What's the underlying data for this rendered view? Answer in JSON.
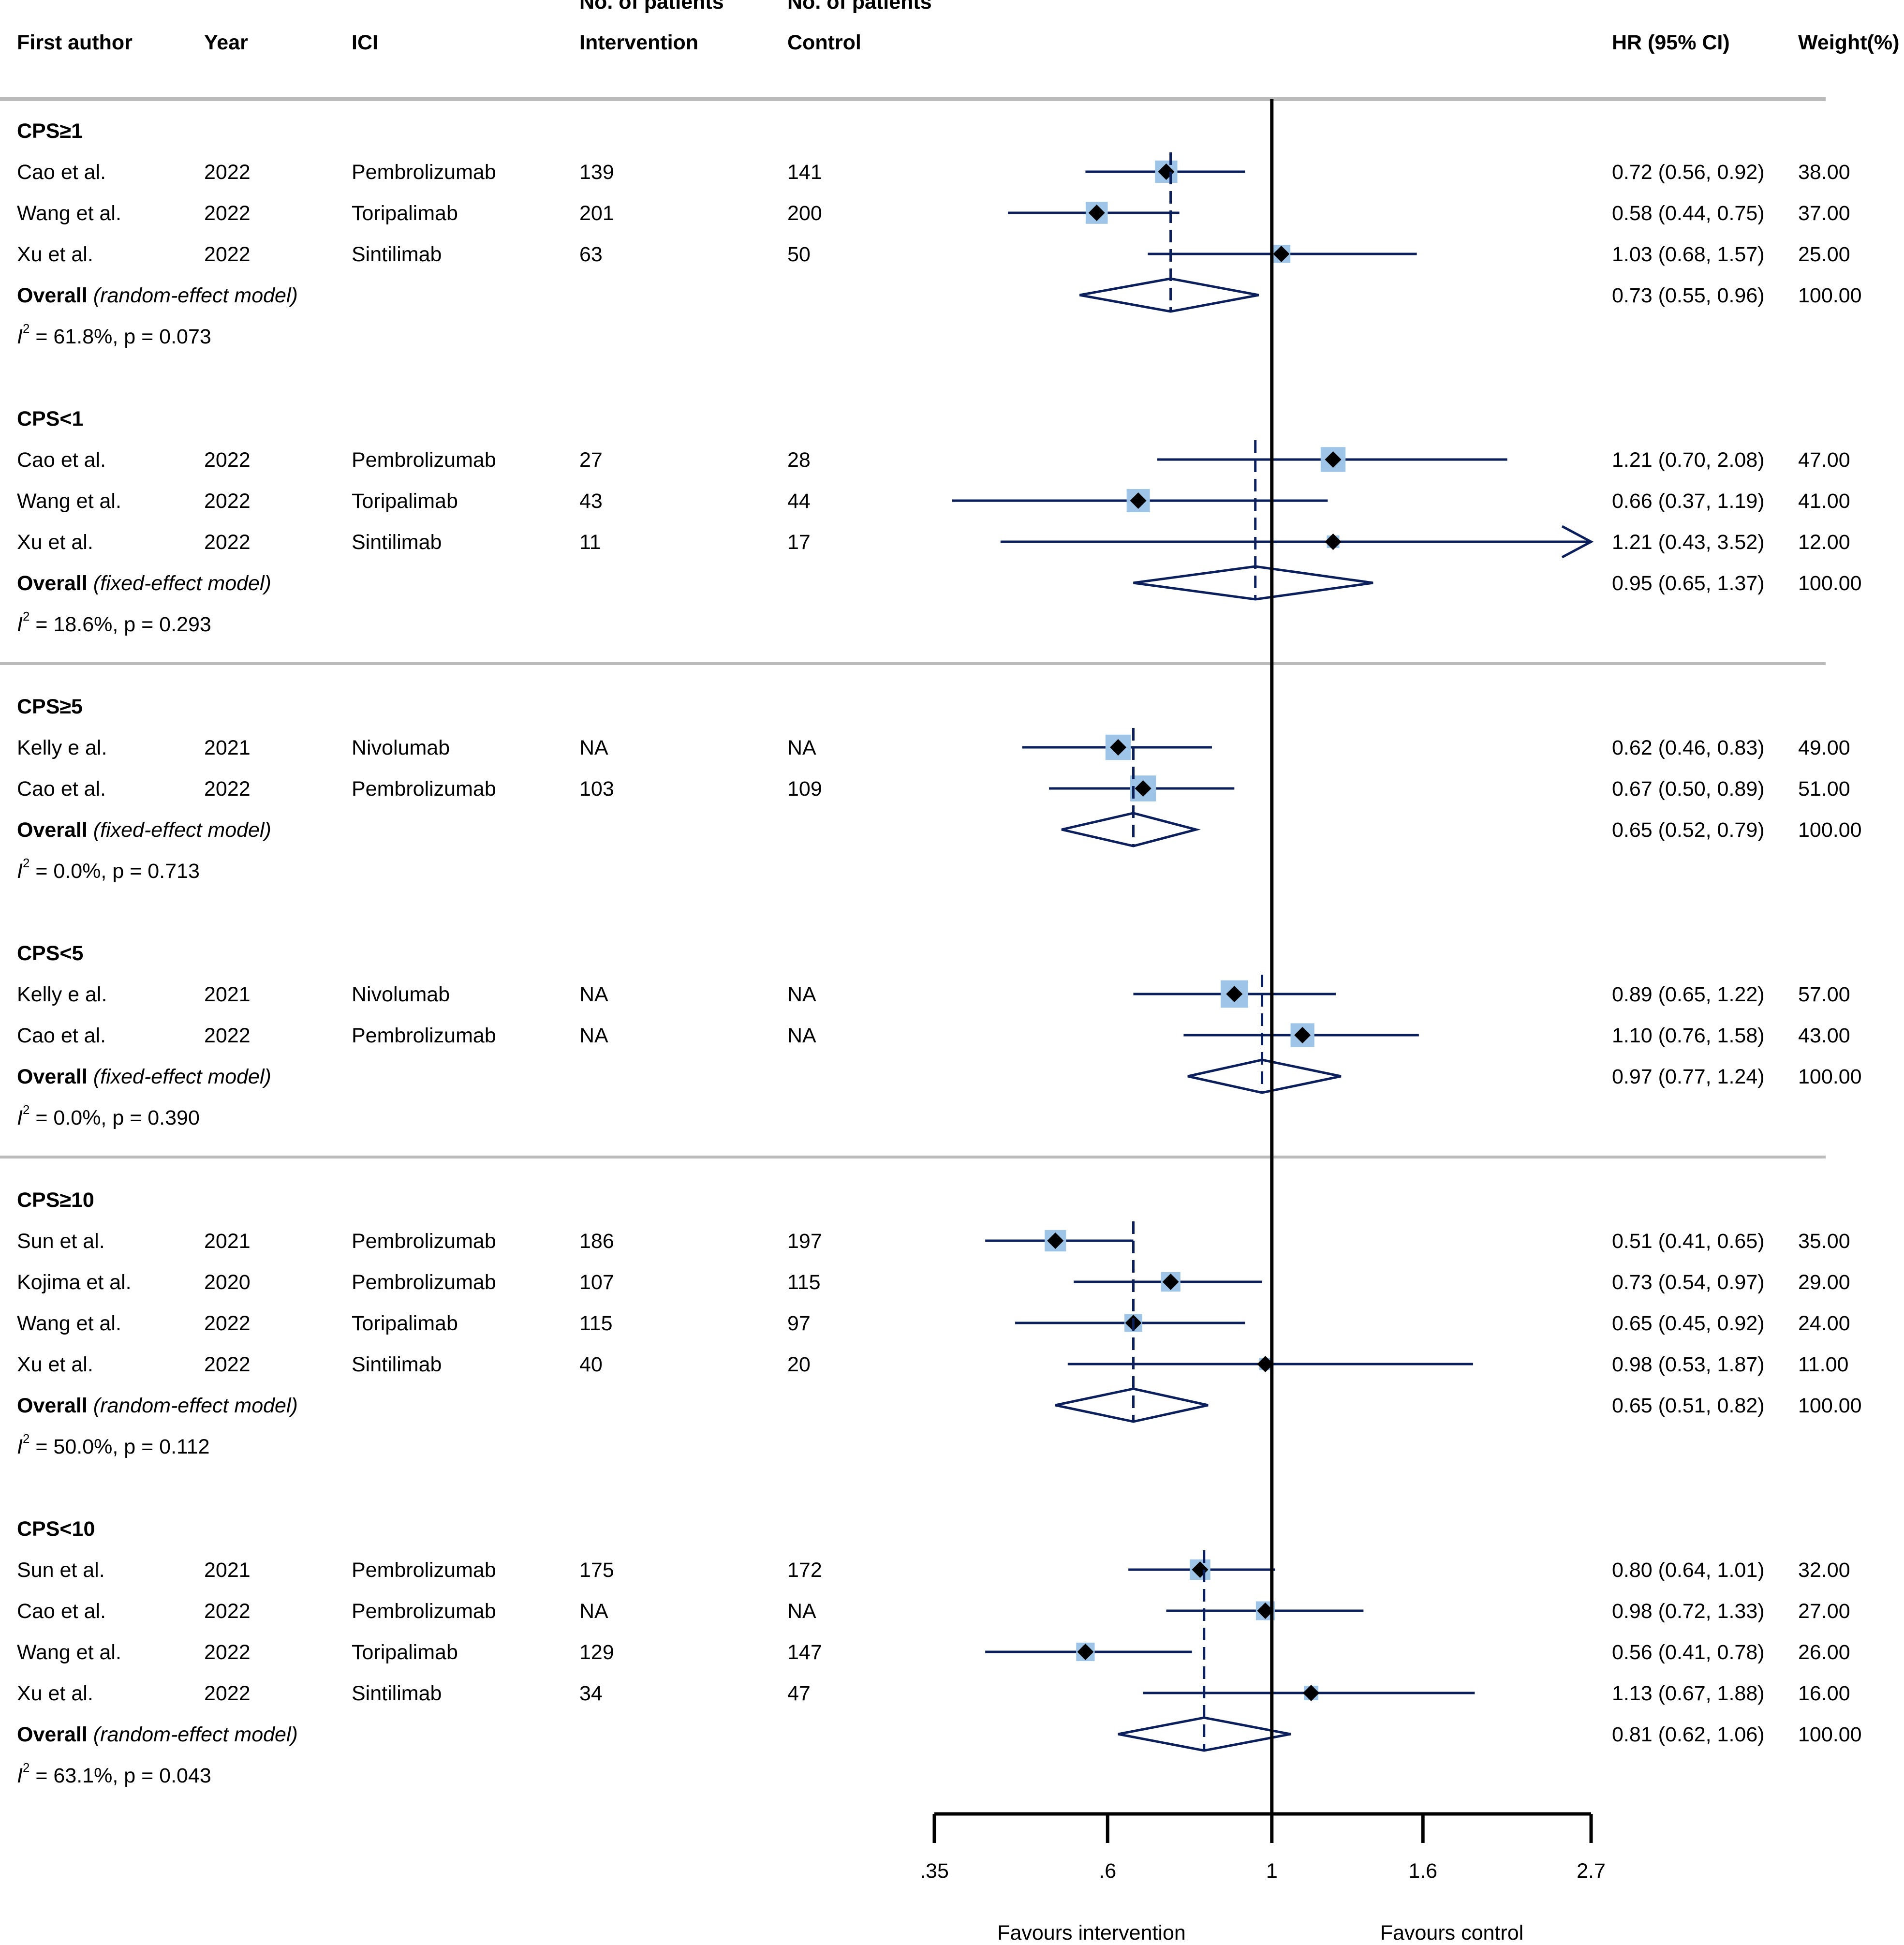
{
  "chart_data": {
    "type": "forest",
    "scale": "log",
    "x_ticks": [
      {
        "value": 0.35,
        "label": ".35"
      },
      {
        "value": 0.6,
        "label": ".6"
      },
      {
        "value": 1.0,
        "label": "1"
      },
      {
        "value": 1.6,
        "label": "1.6"
      },
      {
        "value": 2.7,
        "label": "2.7"
      }
    ],
    "xlim": [
      0.35,
      2.7
    ],
    "null_line": 1,
    "xlabel_left": "Favours intervention",
    "xlabel_right": "Favours control",
    "header": {
      "col_author": "First author",
      "col_year": "Year",
      "col_ici": "ICI",
      "col_int_top": "No. of patients",
      "col_int_bottom": "Intervention",
      "col_ctrl_top": "No. of patients",
      "col_ctrl_bottom": "Control",
      "col_hr": "HR (95% CI)",
      "col_weight": "Weight(%)"
    },
    "groups": [
      {
        "label": "CPS≥1",
        "studies": [
          {
            "author": "Cao et al.",
            "year": "2022",
            "ici": "Pembrolizumab",
            "n_int": "139",
            "n_ctrl": "141",
            "hr": 0.72,
            "lo": 0.56,
            "hi": 0.92,
            "hr_text": "0.72 (0.56, 0.92)",
            "weight": "38.00",
            "weight_num": 38
          },
          {
            "author": "Wang et al.",
            "year": "2022",
            "ici": "Toripalimab",
            "n_int": "201",
            "n_ctrl": "200",
            "hr": 0.58,
            "lo": 0.44,
            "hi": 0.75,
            "hr_text": "0.58 (0.44, 0.75)",
            "weight": "37.00",
            "weight_num": 37
          },
          {
            "author": "Xu et al.",
            "year": "2022",
            "ici": "Sintilimab",
            "n_int": "63",
            "n_ctrl": "50",
            "hr": 1.03,
            "lo": 0.68,
            "hi": 1.57,
            "hr_text": "1.03 (0.68, 1.57)",
            "weight": "25.00",
            "weight_num": 25
          }
        ],
        "overall": {
          "label": "Overall",
          "model": "(random-effect model)",
          "hr": 0.73,
          "lo": 0.55,
          "hi": 0.96,
          "hr_text": "0.73 (0.55, 0.96)",
          "weight": "100.00"
        },
        "het": {
          "stat": "I",
          "sup": "2",
          "text": " = 61.8%, p = 0.073"
        }
      },
      {
        "label": "CPS<1",
        "studies": [
          {
            "author": "Cao et al.",
            "year": "2022",
            "ici": "Pembrolizumab",
            "n_int": "27",
            "n_ctrl": "28",
            "hr": 1.21,
            "lo": 0.7,
            "hi": 2.08,
            "hr_text": "1.21 (0.70, 2.08)",
            "weight": "47.00",
            "weight_num": 47
          },
          {
            "author": "Wang et al.",
            "year": "2022",
            "ici": "Toripalimab",
            "n_int": "43",
            "n_ctrl": "44",
            "hr": 0.66,
            "lo": 0.37,
            "hi": 1.19,
            "hr_text": "0.66 (0.37, 1.19)",
            "weight": "41.00",
            "weight_num": 41
          },
          {
            "author": "Xu et al.",
            "year": "2022",
            "ici": "Sintilimab",
            "n_int": "11",
            "n_ctrl": "17",
            "hr": 1.21,
            "lo": 0.43,
            "hi": 3.52,
            "hr_text": "1.21 (0.43, 3.52)",
            "weight": "12.00",
            "weight_num": 12
          }
        ],
        "overall": {
          "label": "Overall",
          "model": "(fixed-effect model)",
          "hr": 0.95,
          "lo": 0.65,
          "hi": 1.37,
          "hr_text": "0.95 (0.65, 1.37)",
          "weight": "100.00"
        },
        "het": {
          "stat": "I",
          "sup": "2",
          "text": " = 18.6%, p = 0.293"
        }
      },
      {
        "label": "CPS≥5",
        "studies": [
          {
            "author": "Kelly e al.",
            "year": "2021",
            "ici": "Nivolumab",
            "n_int": "NA",
            "n_ctrl": "NA",
            "hr": 0.62,
            "lo": 0.46,
            "hi": 0.83,
            "hr_text": "0.62 (0.46, 0.83)",
            "weight": "49.00",
            "weight_num": 49
          },
          {
            "author": "Cao et al.",
            "year": "2022",
            "ici": "Pembrolizumab",
            "n_int": "103",
            "n_ctrl": "109",
            "hr": 0.67,
            "lo": 0.5,
            "hi": 0.89,
            "hr_text": "0.67 (0.50, 0.89)",
            "weight": "51.00",
            "weight_num": 51
          }
        ],
        "overall": {
          "label": "Overall",
          "model": "(fixed-effect model)",
          "hr": 0.65,
          "lo": 0.52,
          "hi": 0.79,
          "hr_text": "0.65 (0.52, 0.79)",
          "weight": "100.00"
        },
        "het": {
          "stat": "I",
          "sup": "2",
          "text": " = 0.0%, p = 0.713"
        }
      },
      {
        "label": "CPS<5",
        "studies": [
          {
            "author": "Kelly e al.",
            "year": "2021",
            "ici": "Nivolumab",
            "n_int": "NA",
            "n_ctrl": "NA",
            "hr": 0.89,
            "lo": 0.65,
            "hi": 1.22,
            "hr_text": "0.89 (0.65, 1.22)",
            "weight": "57.00",
            "weight_num": 57
          },
          {
            "author": "Cao et al.",
            "year": "2022",
            "ici": "Pembrolizumab",
            "n_int": "NA",
            "n_ctrl": "NA",
            "hr": 1.1,
            "lo": 0.76,
            "hi": 1.58,
            "hr_text": "1.10 (0.76, 1.58)",
            "weight": "43.00",
            "weight_num": 43
          }
        ],
        "overall": {
          "label": "Overall",
          "model": "(fixed-effect model)",
          "hr": 0.97,
          "lo": 0.77,
          "hi": 1.24,
          "hr_text": "0.97 (0.77, 1.24)",
          "weight": "100.00"
        },
        "het": {
          "stat": "I",
          "sup": "2",
          "text": " = 0.0%, p = 0.390"
        }
      },
      {
        "label": "CPS≥10",
        "studies": [
          {
            "author": "Sun et al.",
            "year": "2021",
            "ici": "Pembrolizumab",
            "n_int": "186",
            "n_ctrl": "197",
            "hr": 0.51,
            "lo": 0.41,
            "hi": 0.65,
            "hr_text": "0.51 (0.41, 0.65)",
            "weight": "35.00",
            "weight_num": 35
          },
          {
            "author": "Kojima et al.",
            "year": "2020",
            "ici": "Pembrolizumab",
            "n_int": "107",
            "n_ctrl": "115",
            "hr": 0.73,
            "lo": 0.54,
            "hi": 0.97,
            "hr_text": "0.73 (0.54, 0.97)",
            "weight": "29.00",
            "weight_num": 29
          },
          {
            "author": "Wang et al.",
            "year": "2022",
            "ici": "Toripalimab",
            "n_int": "115",
            "n_ctrl": "97",
            "hr": 0.65,
            "lo": 0.45,
            "hi": 0.92,
            "hr_text": "0.65 (0.45, 0.92)",
            "weight": "24.00",
            "weight_num": 24
          },
          {
            "author": "Xu et al.",
            "year": "2022",
            "ici": "Sintilimab",
            "n_int": "40",
            "n_ctrl": "20",
            "hr": 0.98,
            "lo": 0.53,
            "hi": 1.87,
            "hr_text": "0.98 (0.53, 1.87)",
            "weight": "11.00",
            "weight_num": 11
          }
        ],
        "overall": {
          "label": "Overall",
          "model": "(random-effect model)",
          "hr": 0.65,
          "lo": 0.51,
          "hi": 0.82,
          "hr_text": "0.65 (0.51, 0.82)",
          "weight": "100.00"
        },
        "het": {
          "stat": "I",
          "sup": "2",
          "text": " = 50.0%, p = 0.112"
        }
      },
      {
        "label": "CPS<10",
        "studies": [
          {
            "author": "Sun et al.",
            "year": "2021",
            "ici": "Pembrolizumab",
            "n_int": "175",
            "n_ctrl": "172",
            "hr": 0.8,
            "lo": 0.64,
            "hi": 1.01,
            "hr_text": "0.80 (0.64, 1.01)",
            "weight": "32.00",
            "weight_num": 32
          },
          {
            "author": "Cao et al.",
            "year": "2022",
            "ici": "Pembrolizumab",
            "n_int": "NA",
            "n_ctrl": "NA",
            "hr": 0.98,
            "lo": 0.72,
            "hi": 1.33,
            "hr_text": "0.98 (0.72, 1.33)",
            "weight": "27.00",
            "weight_num": 27
          },
          {
            "author": "Wang et al.",
            "year": "2022",
            "ici": "Toripalimab",
            "n_int": "129",
            "n_ctrl": "147",
            "hr": 0.56,
            "lo": 0.41,
            "hi": 0.78,
            "hr_text": "0.56 (0.41, 0.78)",
            "weight": "26.00",
            "weight_num": 26
          },
          {
            "author": "Xu et al.",
            "year": "2022",
            "ici": "Sintilimab",
            "n_int": "34",
            "n_ctrl": "47",
            "hr": 1.13,
            "lo": 0.67,
            "hi": 1.88,
            "hr_text": "1.13 (0.67, 1.88)",
            "weight": "16.00",
            "weight_num": 16
          }
        ],
        "overall": {
          "label": "Overall",
          "model": "(random-effect model)",
          "hr": 0.81,
          "lo": 0.62,
          "hi": 1.06,
          "hr_text": "0.81 (0.62, 1.06)",
          "weight": "100.00"
        },
        "het": {
          "stat": "I",
          "sup": "2",
          "text": " =  63.1%, p = 0.043"
        }
      }
    ],
    "colors": {
      "ci_line": "#0b1f5c",
      "diamond_stroke": "#0b1f5c",
      "point_fill": "#000000",
      "weight_box": "#9ec5e8",
      "separator": "#bbbbbb",
      "axis": "#000000"
    }
  }
}
